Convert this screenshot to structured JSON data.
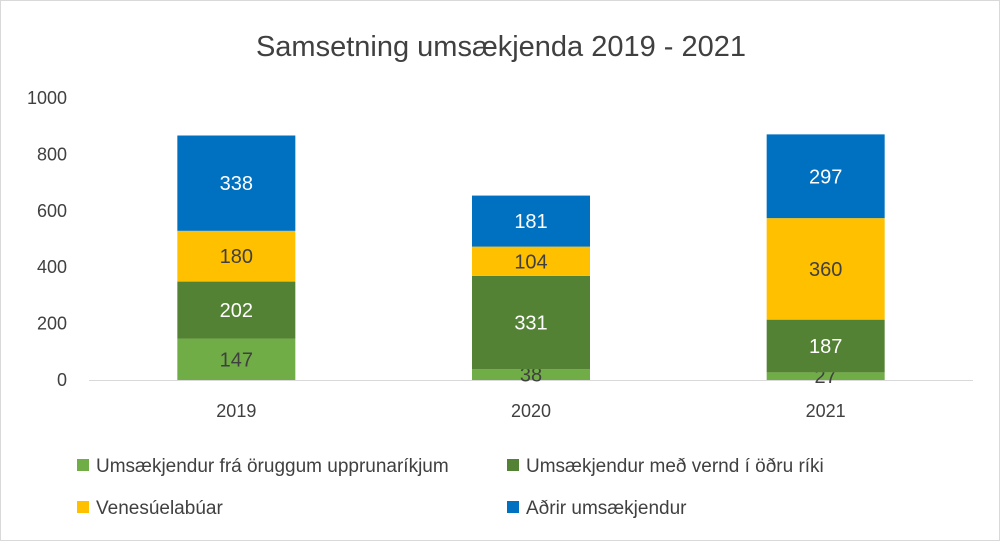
{
  "chart_data": {
    "type": "bar",
    "stacked": true,
    "title": "Samsetning umsækjenda 2019 - 2021",
    "xlabel": "",
    "ylabel": "",
    "categories": [
      "2019",
      "2020",
      "2021"
    ],
    "ylim": [
      0,
      1000
    ],
    "yticks": [
      0,
      200,
      400,
      600,
      800,
      1000
    ],
    "grid": false,
    "legend_position": "bottom",
    "series": [
      {
        "name": "Umsækjendur frá öruggum upprunaríkjum",
        "values": [
          147,
          38,
          27
        ],
        "color": "#70ad47",
        "label_color": "#404040"
      },
      {
        "name": "Umsækjendur með vernd í öðru ríki",
        "values": [
          202,
          331,
          187
        ],
        "color": "#548235",
        "label_color": "#ffffff"
      },
      {
        "name": "Venesúelabúar",
        "values": [
          180,
          104,
          360
        ],
        "color": "#ffc000",
        "label_color": "#404040"
      },
      {
        "name": "Aðrir umsækjendur",
        "values": [
          338,
          181,
          297
        ],
        "color": "#0070c0",
        "label_color": "#ffffff"
      }
    ]
  }
}
